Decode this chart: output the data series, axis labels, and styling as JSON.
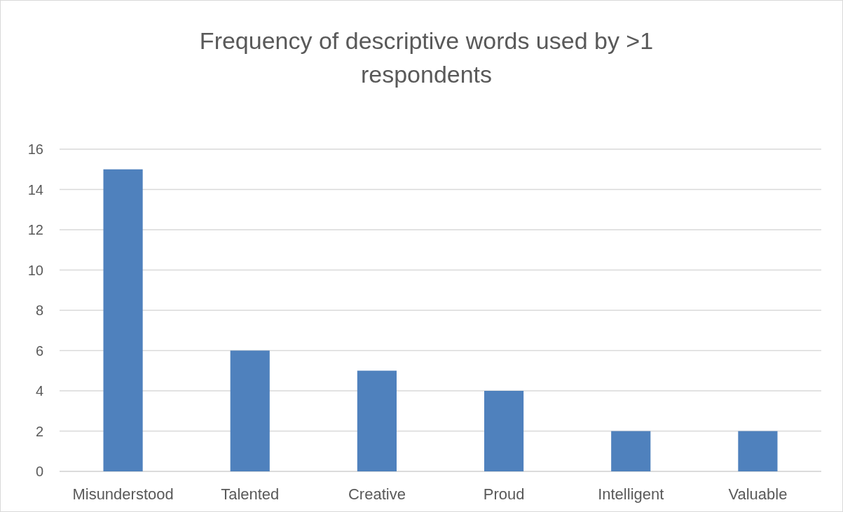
{
  "chart_data": {
    "type": "bar",
    "title": "Frequency of descriptive words used by >1 respondents",
    "categories": [
      "Misunderstood",
      "Talented",
      "Creative",
      "Proud",
      "Intelligent",
      "Valuable"
    ],
    "values": [
      15,
      6,
      5,
      4,
      2,
      2
    ],
    "color": "#4f81bd",
    "ylim": [
      0,
      16
    ],
    "yticks": [
      0,
      2,
      4,
      6,
      8,
      10,
      12,
      14,
      16
    ],
    "grid": "y"
  }
}
